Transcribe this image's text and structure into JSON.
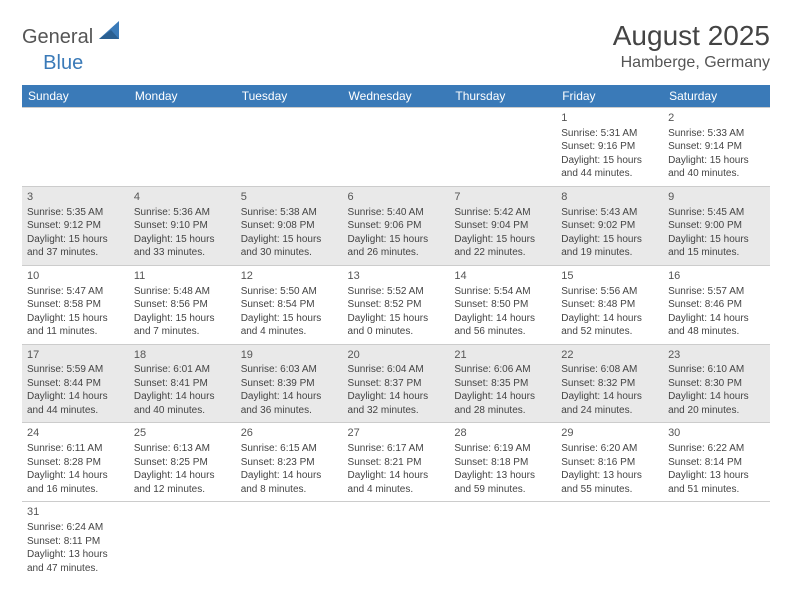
{
  "logo": {
    "part1": "General",
    "part2": "Blue"
  },
  "title": "August 2025",
  "location": "Hamberge, Germany",
  "colors": {
    "header_bg": "#3a7ab8",
    "header_text": "#ffffff",
    "row_alt_bg": "#e9e9e9",
    "row_bg": "#ffffff",
    "border": "#cccccc",
    "text": "#444444",
    "logo_gray": "#555555",
    "logo_blue": "#3a7ab8"
  },
  "day_headers": [
    "Sunday",
    "Monday",
    "Tuesday",
    "Wednesday",
    "Thursday",
    "Friday",
    "Saturday"
  ],
  "weeks": [
    [
      null,
      null,
      null,
      null,
      null,
      {
        "n": "1",
        "sr": "Sunrise: 5:31 AM",
        "ss": "Sunset: 9:16 PM",
        "d1": "Daylight: 15 hours",
        "d2": "and 44 minutes."
      },
      {
        "n": "2",
        "sr": "Sunrise: 5:33 AM",
        "ss": "Sunset: 9:14 PM",
        "d1": "Daylight: 15 hours",
        "d2": "and 40 minutes."
      }
    ],
    [
      {
        "n": "3",
        "sr": "Sunrise: 5:35 AM",
        "ss": "Sunset: 9:12 PM",
        "d1": "Daylight: 15 hours",
        "d2": "and 37 minutes."
      },
      {
        "n": "4",
        "sr": "Sunrise: 5:36 AM",
        "ss": "Sunset: 9:10 PM",
        "d1": "Daylight: 15 hours",
        "d2": "and 33 minutes."
      },
      {
        "n": "5",
        "sr": "Sunrise: 5:38 AM",
        "ss": "Sunset: 9:08 PM",
        "d1": "Daylight: 15 hours",
        "d2": "and 30 minutes."
      },
      {
        "n": "6",
        "sr": "Sunrise: 5:40 AM",
        "ss": "Sunset: 9:06 PM",
        "d1": "Daylight: 15 hours",
        "d2": "and 26 minutes."
      },
      {
        "n": "7",
        "sr": "Sunrise: 5:42 AM",
        "ss": "Sunset: 9:04 PM",
        "d1": "Daylight: 15 hours",
        "d2": "and 22 minutes."
      },
      {
        "n": "8",
        "sr": "Sunrise: 5:43 AM",
        "ss": "Sunset: 9:02 PM",
        "d1": "Daylight: 15 hours",
        "d2": "and 19 minutes."
      },
      {
        "n": "9",
        "sr": "Sunrise: 5:45 AM",
        "ss": "Sunset: 9:00 PM",
        "d1": "Daylight: 15 hours",
        "d2": "and 15 minutes."
      }
    ],
    [
      {
        "n": "10",
        "sr": "Sunrise: 5:47 AM",
        "ss": "Sunset: 8:58 PM",
        "d1": "Daylight: 15 hours",
        "d2": "and 11 minutes."
      },
      {
        "n": "11",
        "sr": "Sunrise: 5:48 AM",
        "ss": "Sunset: 8:56 PM",
        "d1": "Daylight: 15 hours",
        "d2": "and 7 minutes."
      },
      {
        "n": "12",
        "sr": "Sunrise: 5:50 AM",
        "ss": "Sunset: 8:54 PM",
        "d1": "Daylight: 15 hours",
        "d2": "and 4 minutes."
      },
      {
        "n": "13",
        "sr": "Sunrise: 5:52 AM",
        "ss": "Sunset: 8:52 PM",
        "d1": "Daylight: 15 hours",
        "d2": "and 0 minutes."
      },
      {
        "n": "14",
        "sr": "Sunrise: 5:54 AM",
        "ss": "Sunset: 8:50 PM",
        "d1": "Daylight: 14 hours",
        "d2": "and 56 minutes."
      },
      {
        "n": "15",
        "sr": "Sunrise: 5:56 AM",
        "ss": "Sunset: 8:48 PM",
        "d1": "Daylight: 14 hours",
        "d2": "and 52 minutes."
      },
      {
        "n": "16",
        "sr": "Sunrise: 5:57 AM",
        "ss": "Sunset: 8:46 PM",
        "d1": "Daylight: 14 hours",
        "d2": "and 48 minutes."
      }
    ],
    [
      {
        "n": "17",
        "sr": "Sunrise: 5:59 AM",
        "ss": "Sunset: 8:44 PM",
        "d1": "Daylight: 14 hours",
        "d2": "and 44 minutes."
      },
      {
        "n": "18",
        "sr": "Sunrise: 6:01 AM",
        "ss": "Sunset: 8:41 PM",
        "d1": "Daylight: 14 hours",
        "d2": "and 40 minutes."
      },
      {
        "n": "19",
        "sr": "Sunrise: 6:03 AM",
        "ss": "Sunset: 8:39 PM",
        "d1": "Daylight: 14 hours",
        "d2": "and 36 minutes."
      },
      {
        "n": "20",
        "sr": "Sunrise: 6:04 AM",
        "ss": "Sunset: 8:37 PM",
        "d1": "Daylight: 14 hours",
        "d2": "and 32 minutes."
      },
      {
        "n": "21",
        "sr": "Sunrise: 6:06 AM",
        "ss": "Sunset: 8:35 PM",
        "d1": "Daylight: 14 hours",
        "d2": "and 28 minutes."
      },
      {
        "n": "22",
        "sr": "Sunrise: 6:08 AM",
        "ss": "Sunset: 8:32 PM",
        "d1": "Daylight: 14 hours",
        "d2": "and 24 minutes."
      },
      {
        "n": "23",
        "sr": "Sunrise: 6:10 AM",
        "ss": "Sunset: 8:30 PM",
        "d1": "Daylight: 14 hours",
        "d2": "and 20 minutes."
      }
    ],
    [
      {
        "n": "24",
        "sr": "Sunrise: 6:11 AM",
        "ss": "Sunset: 8:28 PM",
        "d1": "Daylight: 14 hours",
        "d2": "and 16 minutes."
      },
      {
        "n": "25",
        "sr": "Sunrise: 6:13 AM",
        "ss": "Sunset: 8:25 PM",
        "d1": "Daylight: 14 hours",
        "d2": "and 12 minutes."
      },
      {
        "n": "26",
        "sr": "Sunrise: 6:15 AM",
        "ss": "Sunset: 8:23 PM",
        "d1": "Daylight: 14 hours",
        "d2": "and 8 minutes."
      },
      {
        "n": "27",
        "sr": "Sunrise: 6:17 AM",
        "ss": "Sunset: 8:21 PM",
        "d1": "Daylight: 14 hours",
        "d2": "and 4 minutes."
      },
      {
        "n": "28",
        "sr": "Sunrise: 6:19 AM",
        "ss": "Sunset: 8:18 PM",
        "d1": "Daylight: 13 hours",
        "d2": "and 59 minutes."
      },
      {
        "n": "29",
        "sr": "Sunrise: 6:20 AM",
        "ss": "Sunset: 8:16 PM",
        "d1": "Daylight: 13 hours",
        "d2": "and 55 minutes."
      },
      {
        "n": "30",
        "sr": "Sunrise: 6:22 AM",
        "ss": "Sunset: 8:14 PM",
        "d1": "Daylight: 13 hours",
        "d2": "and 51 minutes."
      }
    ],
    [
      {
        "n": "31",
        "sr": "Sunrise: 6:24 AM",
        "ss": "Sunset: 8:11 PM",
        "d1": "Daylight: 13 hours",
        "d2": "and 47 minutes."
      },
      null,
      null,
      null,
      null,
      null,
      null
    ]
  ]
}
